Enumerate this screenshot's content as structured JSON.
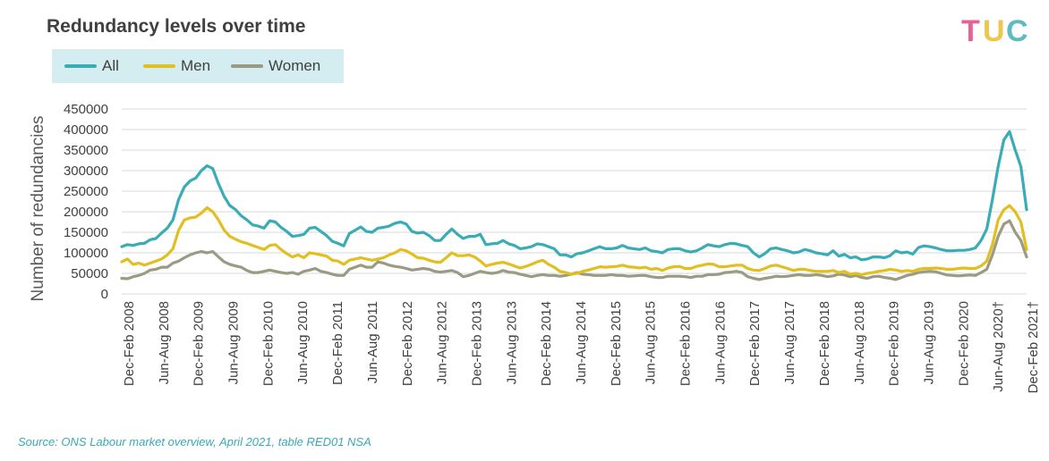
{
  "title": "Redundancy levels over time",
  "source": "Source: ONS Labour market overview, April 2021, table RED01 NSA",
  "logo": {
    "letters": [
      "T",
      "U",
      "C"
    ],
    "colors": [
      "#e23b7a",
      "#e9b81f",
      "#39a9b4"
    ]
  },
  "colors": {
    "All": "#3aacb5",
    "Men": "#e2bf20",
    "Women": "#9a9a85"
  },
  "chart_data": {
    "type": "line",
    "title": "Redundancy levels over time",
    "xlabel": "",
    "ylabel": "Number of redundancies",
    "ylim": [
      0,
      450000
    ],
    "yticks": [
      "450000",
      "400000",
      "350000",
      "300000",
      "250000",
      "200000",
      "150000",
      "100000",
      "50000",
      "0"
    ],
    "xtick_labels": [
      "Dec-Feb 2008",
      "Jun-Aug 2008",
      "Dec-Feb 2009",
      "Jun-Aug 2009",
      "Dec-Feb 2010",
      "Jun-Aug 2010",
      "Dec-Feb 2011",
      "Jun-Aug 2011",
      "Dec-Feb 2012",
      "Jun-Aug 2012",
      "Dec-Feb 2013",
      "Jun-Aug 2013",
      "Dec-Feb 2014",
      "Jun-Aug 2014",
      "Dec-Feb 2015",
      "Jun-Aug 2015",
      "Dec-Feb 2016",
      "Jun-Aug 2016",
      "Dec-Feb 2017",
      "Jun-Aug 2017",
      "Dec-Feb 2018",
      "Jun-Aug 2018",
      "Dec-Feb 2019",
      "Jun-Aug 2019",
      "Dec-Feb 2020",
      "Jun-Aug 2020†",
      "Dec-Feb 2021†"
    ],
    "grid": true,
    "legend": "top-left",
    "series": [
      {
        "name": "All",
        "values": [
          115000,
          120000,
          118000,
          122000,
          123000,
          132000,
          135000,
          148000,
          160000,
          180000,
          230000,
          260000,
          275000,
          282000,
          300000,
          312000,
          305000,
          268000,
          237000,
          215000,
          205000,
          190000,
          180000,
          168000,
          165000,
          160000,
          178000,
          175000,
          162000,
          152000,
          140000,
          142000,
          145000,
          160000,
          162000,
          152000,
          142000,
          128000,
          123000,
          117000,
          147000,
          155000,
          163000,
          152000,
          150000,
          160000,
          162000,
          165000,
          172000,
          175000,
          170000,
          152000,
          148000,
          150000,
          142000,
          130000,
          130000,
          145000,
          158000,
          145000,
          135000,
          140000,
          140000,
          145000,
          120000,
          122000,
          123000,
          130000,
          122000,
          118000,
          110000,
          112000,
          115000,
          122000,
          120000,
          115000,
          110000,
          95000,
          95000,
          90000,
          98000,
          100000,
          105000,
          110000,
          115000,
          110000,
          110000,
          112000,
          118000,
          112000,
          110000,
          108000,
          112000,
          105000,
          103000,
          100000,
          108000,
          110000,
          110000,
          105000,
          102000,
          105000,
          112000,
          120000,
          117000,
          115000,
          120000,
          123000,
          122000,
          118000,
          115000,
          100000,
          90000,
          98000,
          110000,
          112000,
          108000,
          105000,
          100000,
          102000,
          108000,
          105000,
          100000,
          98000,
          95000,
          105000,
          92000,
          96000,
          88000,
          90000,
          83000,
          85000,
          90000,
          90000,
          88000,
          93000,
          105000,
          100000,
          102000,
          97000,
          113000,
          117000,
          115000,
          112000,
          108000,
          105000,
          105000,
          106000,
          106000,
          108000,
          112000,
          130000,
          158000,
          230000,
          310000,
          375000,
          395000,
          350000,
          310000,
          205000
        ]
      },
      {
        "name": "Men",
        "values": [
          78000,
          85000,
          72000,
          75000,
          70000,
          75000,
          80000,
          85000,
          95000,
          110000,
          155000,
          180000,
          185000,
          187000,
          197000,
          210000,
          200000,
          180000,
          155000,
          140000,
          133000,
          127000,
          123000,
          118000,
          113000,
          108000,
          118000,
          120000,
          108000,
          98000,
          90000,
          95000,
          88000,
          100000,
          98000,
          95000,
          92000,
          82000,
          80000,
          72000,
          82000,
          85000,
          88000,
          85000,
          82000,
          85000,
          88000,
          95000,
          100000,
          108000,
          105000,
          97000,
          88000,
          87000,
          82000,
          78000,
          77000,
          88000,
          100000,
          93000,
          93000,
          95000,
          90000,
          80000,
          68000,
          72000,
          75000,
          77000,
          73000,
          68000,
          63000,
          67000,
          72000,
          78000,
          82000,
          72000,
          65000,
          55000,
          52000,
          48000,
          50000,
          55000,
          58000,
          62000,
          66000,
          65000,
          66000,
          67000,
          70000,
          66000,
          65000,
          63000,
          65000,
          60000,
          62000,
          57000,
          63000,
          66000,
          67000,
          62000,
          62000,
          67000,
          70000,
          73000,
          72000,
          66000,
          66000,
          68000,
          70000,
          70000,
          62000,
          58000,
          57000,
          62000,
          68000,
          70000,
          66000,
          62000,
          57000,
          60000,
          60000,
          57000,
          55000,
          55000,
          55000,
          57000,
          52000,
          55000,
          48000,
          50000,
          47000,
          50000,
          52000,
          55000,
          57000,
          60000,
          58000,
          55000,
          57000,
          55000,
          60000,
          62000,
          62000,
          63000,
          62000,
          60000,
          60000,
          62000,
          63000,
          62000,
          62000,
          68000,
          80000,
          120000,
          180000,
          205000,
          215000,
          200000,
          175000,
          108000
        ]
      },
      {
        "name": "Women",
        "values": [
          38000,
          37000,
          42000,
          45000,
          50000,
          58000,
          60000,
          65000,
          65000,
          75000,
          80000,
          88000,
          95000,
          100000,
          103000,
          100000,
          103000,
          90000,
          78000,
          72000,
          68000,
          65000,
          57000,
          52000,
          52000,
          55000,
          58000,
          55000,
          52000,
          50000,
          52000,
          48000,
          55000,
          58000,
          62000,
          55000,
          52000,
          48000,
          45000,
          45000,
          60000,
          65000,
          70000,
          65000,
          65000,
          78000,
          75000,
          70000,
          67000,
          65000,
          62000,
          58000,
          60000,
          62000,
          60000,
          55000,
          53000,
          55000,
          57000,
          52000,
          42000,
          45000,
          50000,
          55000,
          52000,
          50000,
          52000,
          57000,
          53000,
          52000,
          48000,
          45000,
          42000,
          45000,
          47000,
          45000,
          45000,
          43000,
          45000,
          48000,
          52000,
          48000,
          47000,
          45000,
          45000,
          45000,
          47000,
          45000,
          45000,
          43000,
          44000,
          45000,
          45000,
          42000,
          40000,
          40000,
          43000,
          43000,
          43000,
          42000,
          40000,
          43000,
          43000,
          47000,
          47000,
          48000,
          52000,
          53000,
          55000,
          52000,
          42000,
          38000,
          35000,
          38000,
          40000,
          43000,
          42000,
          43000,
          45000,
          47000,
          45000,
          45000,
          47000,
          45000,
          42000,
          44000,
          48000,
          46000,
          42000,
          45000,
          40000,
          38000,
          42000,
          43000,
          40000,
          38000,
          35000,
          40000,
          45000,
          48000,
          52000,
          54000,
          55000,
          54000,
          50000,
          46000,
          45000,
          44000,
          45000,
          46000,
          45000,
          52000,
          60000,
          95000,
          140000,
          170000,
          178000,
          150000,
          130000,
          90000
        ]
      }
    ]
  }
}
